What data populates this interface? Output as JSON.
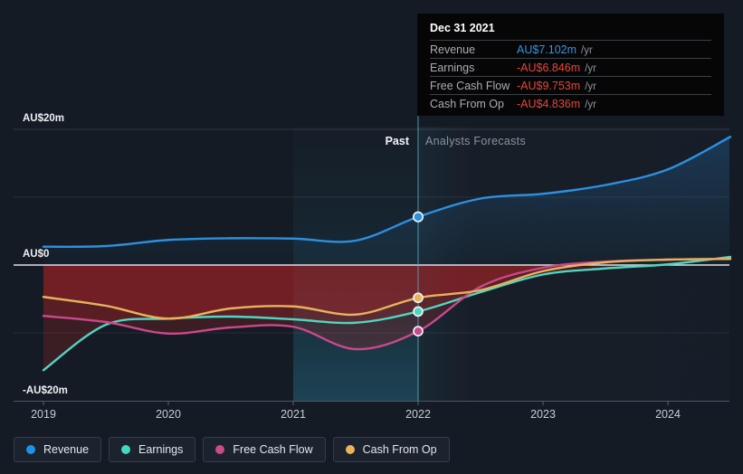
{
  "chart": {
    "y_axis_labels": [
      "AU$20m",
      "AU$0",
      "-AU$20m"
    ],
    "x_axis_labels": [
      "2019",
      "2020",
      "2021",
      "2022",
      "2023",
      "2024"
    ],
    "past_label": "Past",
    "forecast_label": "Analysts Forecasts"
  },
  "tooltip": {
    "date": "Dec 31 2021",
    "rows": [
      {
        "label": "Revenue",
        "value": "AU$7.102m",
        "unit": "/yr",
        "color": "#2e96ea"
      },
      {
        "label": "Earnings",
        "value": "-AU$6.846m",
        "unit": "/yr",
        "color": "#e5443c"
      },
      {
        "label": "Free Cash Flow",
        "value": "-AU$9.753m",
        "unit": "/yr",
        "color": "#e5443c"
      },
      {
        "label": "Cash From Op",
        "value": "-AU$4.836m",
        "unit": "/yr",
        "color": "#e5443c"
      }
    ]
  },
  "legend": [
    {
      "label": "Revenue",
      "color": "#2091e8"
    },
    {
      "label": "Earnings",
      "color": "#42d8c2"
    },
    {
      "label": "Free Cash Flow",
      "color": "#c74c88"
    },
    {
      "label": "Cash From Op",
      "color": "#e9b45a"
    }
  ],
  "chart_data": {
    "type": "line",
    "x": [
      2019,
      2019.5,
      2020,
      2020.5,
      2021,
      2021.5,
      2022,
      2022.5,
      2023,
      2023.5,
      2024,
      2024.5
    ],
    "x_unit": "year",
    "ylabel": "AU$ (millions)",
    "ylim": [
      -20,
      20
    ],
    "gridlines_y": [
      20,
      10,
      0,
      -10,
      -20
    ],
    "grid": true,
    "legend_position": "bottom",
    "past_forecast_divide": {
      "x": 2022,
      "date": "Dec 31 2021"
    },
    "marker_x": 2022,
    "series": [
      {
        "name": "Revenue",
        "color": "#2b90e0",
        "values": [
          2.7,
          2.8,
          3.7,
          3.95,
          3.9,
          3.6,
          7.102,
          9.8,
          10.5,
          11.8,
          14.1,
          18.9
        ]
      },
      {
        "name": "Earnings",
        "color": "#4fd6c2",
        "values": [
          -15.5,
          -8.8,
          -7.9,
          -7.6,
          -8.0,
          -8.5,
          -6.846,
          -4.0,
          -1.4,
          -0.5,
          0.1,
          1.2
        ]
      },
      {
        "name": "Free Cash Flow",
        "color": "#c9498a",
        "values": [
          -7.5,
          -8.4,
          -10.1,
          -9.2,
          -9.1,
          -12.4,
          -9.753,
          -3.2,
          -0.4,
          0.5,
          0.8,
          0.9
        ]
      },
      {
        "name": "Cash From Op",
        "color": "#e8b25c",
        "values": [
          -4.7,
          -6.0,
          -7.9,
          -6.4,
          -6.1,
          -7.3,
          -4.836,
          -3.7,
          -0.9,
          0.4,
          0.8,
          0.9
        ]
      }
    ]
  }
}
